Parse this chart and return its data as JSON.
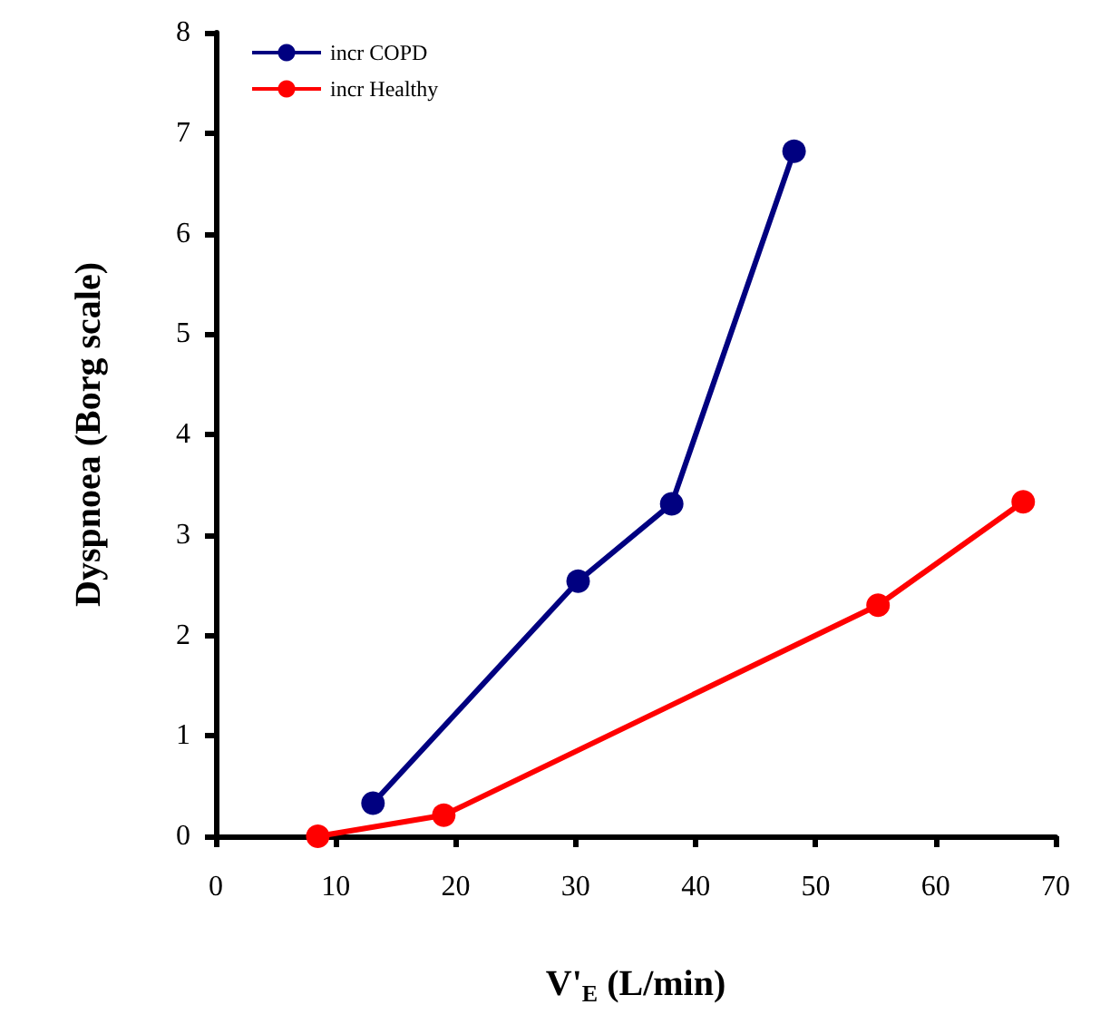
{
  "chart_data": {
    "type": "line",
    "xlabel": "V'$_{E}$ (L/min)",
    "ylabel": "Dyspnoea (Borg scale)",
    "xlim": [
      0,
      70
    ],
    "xticks": [
      0,
      10,
      20,
      30,
      40,
      50,
      60,
      70
    ],
    "ylim": [
      0,
      8
    ],
    "yticks": [
      0,
      1,
      2,
      3,
      4,
      5,
      6,
      7,
      8
    ],
    "grid": false,
    "legend": "top left",
    "marker": "circle",
    "line_style": "solid",
    "series": [
      {
        "name": "incr COPD",
        "color": "#000080",
        "x": [
          13.1,
          30.2,
          38.0,
          48.2
        ],
        "values": [
          0.33,
          2.54,
          3.31,
          6.82
        ]
      },
      {
        "name": "incr Healthy",
        "color": "#ff0000",
        "x": [
          8.5,
          19.0,
          55.2,
          67.3
        ],
        "values": [
          0,
          0.21,
          2.3,
          3.33
        ]
      }
    ]
  }
}
